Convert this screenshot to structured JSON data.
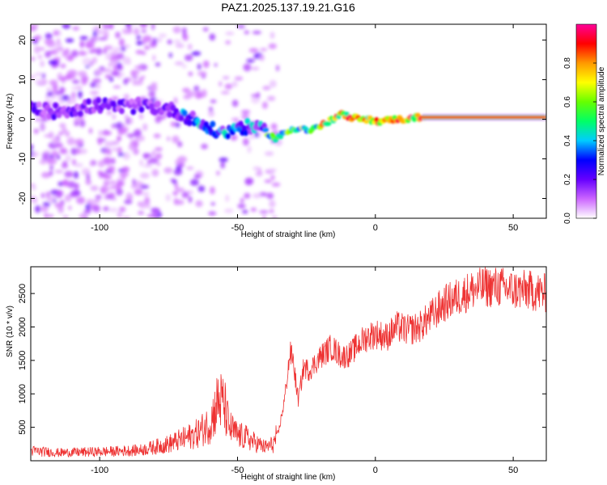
{
  "title": "PAZ1.2025.137.19.21.G16",
  "chart_data": [
    {
      "type": "heatmap",
      "xlabel": "Height of straight line (km)",
      "ylabel": "Frequency (Hz)",
      "xlim": [
        -125,
        62
      ],
      "ylim": [
        -25,
        24
      ],
      "xticks": [
        -100,
        -50,
        0,
        50
      ],
      "yticks": [
        -20,
        -10,
        0,
        10,
        20
      ],
      "grid": false,
      "ridge": {
        "x": [
          -125,
          -118,
          -110,
          -100,
          -92,
          -85,
          -78,
          -72,
          -66,
          -60,
          -55,
          -50,
          -45,
          -40,
          -36,
          -33,
          -30,
          -27,
          -24,
          -21,
          -18,
          -15,
          -12,
          -9,
          -6,
          -3,
          0,
          3,
          6,
          9,
          12,
          15,
          18,
          62
        ],
        "y": [
          2.5,
          2.0,
          2.5,
          3.5,
          3.0,
          3.5,
          3.0,
          2.0,
          0.0,
          -2.5,
          -3.5,
          -2.0,
          -2.0,
          -3.0,
          -5.0,
          -3.5,
          -2.5,
          -2.0,
          -3.0,
          -2.0,
          -1.0,
          0.0,
          1.5,
          0.0,
          0.5,
          0.0,
          -0.5,
          -0.5,
          0.0,
          0.0,
          0.0,
          0.5,
          0.5,
          0.5
        ]
      },
      "colorbar": {
        "label": "Normalized spectral amplitude",
        "range": [
          0.0,
          1.0
        ],
        "ticks": [
          "0.0",
          "0.2",
          "0.4",
          "0.6",
          "0.8"
        ],
        "colors": [
          "#ffffff",
          "#cc66ff",
          "#6600ff",
          "#0000ff",
          "#00ccff",
          "#00ff66",
          "#66ff00",
          "#ffff00",
          "#ff9900",
          "#ff0000",
          "#ff0099"
        ]
      }
    },
    {
      "type": "line",
      "xlabel": "Height of straight line (km)",
      "ylabel": "SNR (10 * v/v)",
      "xlim": [
        -125,
        62
      ],
      "ylim": [
        0,
        2900
      ],
      "xticks": [
        -100,
        -50,
        0,
        50
      ],
      "yticks": [
        500,
        1000,
        1500,
        2000,
        2500
      ],
      "grid": false,
      "series": [
        {
          "color": "#ee3333",
          "x": [
            -125,
            -115,
            -105,
            -95,
            -85,
            -75,
            -70,
            -65,
            -60,
            -57,
            -55,
            -53,
            -50,
            -47,
            -45,
            -40,
            -37,
            -35,
            -33,
            -31,
            -30,
            -28,
            -26,
            -24,
            -20,
            -16,
            -12,
            -9,
            -6,
            -3,
            0,
            4,
            8,
            12,
            16,
            20,
            25,
            30,
            35,
            40,
            45,
            50,
            55,
            62
          ],
          "y": [
            150,
            120,
            130,
            140,
            160,
            250,
            320,
            400,
            550,
            900,
            850,
            500,
            380,
            350,
            300,
            200,
            250,
            450,
            900,
            1600,
            1550,
            900,
            1400,
            1350,
            1550,
            1700,
            1550,
            1600,
            1750,
            1850,
            1900,
            1850,
            2000,
            1950,
            2000,
            2150,
            2350,
            2450,
            2550,
            2600,
            2600,
            2550,
            2550,
            2500
          ]
        }
      ]
    }
  ]
}
